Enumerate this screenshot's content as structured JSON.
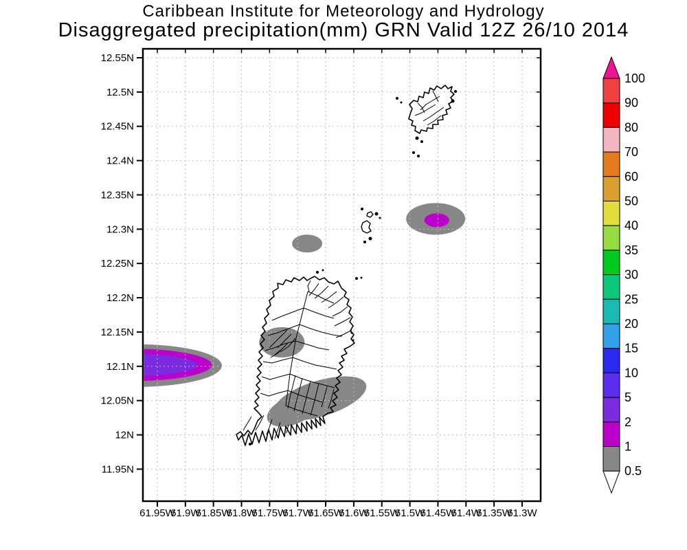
{
  "title": {
    "line1": "Caribbean Institute for Meteorology and Hydrology",
    "line2": "Disaggregated precipitation(mm) GRN Valid 12Z 26/10 2014"
  },
  "axes": {
    "y_ticks": [
      "12.55N",
      "12.5N",
      "12.45N",
      "12.4N",
      "12.35N",
      "12.3N",
      "12.25N",
      "12.2N",
      "12.15N",
      "12.1N",
      "12.05N",
      "12N",
      "11.95N"
    ],
    "x_ticks": [
      "61.95W",
      "61.9W",
      "61.85W",
      "61.8W",
      "61.75W",
      "61.7W",
      "61.65W",
      "61.6W",
      "61.55W",
      "61.5W",
      "61.45W",
      "61.4W",
      "61.35W",
      "61.3W"
    ]
  },
  "colorbar": {
    "tick_labels": [
      "100",
      "90",
      "80",
      "70",
      "60",
      "50",
      "40",
      "35",
      "30",
      "25",
      "20",
      "15",
      "10",
      "5",
      "2",
      "1",
      "0.5"
    ],
    "segment_colors_top_to_bottom": [
      "#ee4040",
      "#ee0000",
      "#f2b6c0",
      "#e87a1e",
      "#d9a02f",
      "#e2de3c",
      "#97dc3e",
      "#00cb1c",
      "#0bc87b",
      "#18bab2",
      "#32a2e8",
      "#2a2aee",
      "#5b2dee",
      "#7b2be0",
      "#bb00cc",
      "#878787"
    ],
    "top_arrow_color": "#ee1493",
    "bottom_arrow_color": "#ffffff"
  },
  "chart_data": {
    "type": "filled-contour-map",
    "title": "Caribbean Institute for Meteorology and Hydrology",
    "subtitle": "Disaggregated precipitation(mm) GRN Valid 12Z 26/10 2014",
    "variable": "Disaggregated precipitation",
    "units": "mm",
    "region": "GRN (Grenada, Carriacou and nearby islets)",
    "valid_time": "12Z 26/10 2014",
    "grid": "dotted",
    "legend_position": "right",
    "lon_ticks_deg_w": [
      61.95,
      61.9,
      61.85,
      61.8,
      61.75,
      61.7,
      61.65,
      61.6,
      61.55,
      61.5,
      61.45,
      61.4,
      61.35,
      61.3
    ],
    "lat_ticks_deg_n": [
      12.55,
      12.5,
      12.45,
      12.4,
      12.35,
      12.3,
      12.25,
      12.2,
      12.15,
      12.1,
      12.05,
      12.0,
      11.95
    ],
    "lon_extent_deg_w": [
      61.976,
      61.267
    ],
    "lat_extent_deg_n": [
      11.903,
      12.56
    ],
    "contour_levels_mm": [
      0.5,
      1,
      2,
      5,
      10,
      15,
      20,
      25,
      30,
      35,
      40,
      50,
      60,
      70,
      80,
      90,
      100
    ],
    "level_colors_low_to_high": [
      "#878787",
      "#bb00cc",
      "#7b2be0",
      "#5b2dee",
      "#2a2aee",
      "#32a2e8",
      "#18bab2",
      "#0bc87b",
      "#00cb1c",
      "#97dc3e",
      "#e2de3c",
      "#d9a02f",
      "#e87a1e",
      "#f2b6c0",
      "#ee0000",
      "#ee4040"
    ],
    "precip_areas": [
      {
        "id": "offshore-west",
        "note": "nested maxima clipped by west edge of plot near 12.1N",
        "rings": [
          {
            "range_mm": "0.5-1",
            "color": "#878787",
            "center": {
              "lon_w": 61.989,
              "lat_n": 12.101
            },
            "rx_deg": 0.154,
            "ry_deg": 0.0312,
            "rot_deg": 0
          },
          {
            "range_mm": "1-2",
            "color": "#bb00cc",
            "center": {
              "lon_w": 61.995,
              "lat_n": 12.102
            },
            "rx_deg": 0.142,
            "ry_deg": 0.0236,
            "rot_deg": 0
          },
          {
            "range_mm": "2-5",
            "color": "#7b2be0",
            "center": {
              "lon_w": 62.001,
              "lat_n": 12.102
            },
            "rx_deg": 0.122,
            "ry_deg": 0.0165,
            "rot_deg": 0
          }
        ]
      },
      {
        "id": "offshore-west-of-ronde",
        "rings": [
          {
            "range_mm": "0.5-1",
            "color": "#878787",
            "center": {
              "lon_w": 61.683,
              "lat_n": 12.279
            },
            "rx_deg": 0.0269,
            "ry_deg": 0.013,
            "rot_deg": 0
          }
        ]
      },
      {
        "id": "offshore-east",
        "rings": [
          {
            "range_mm": "0.5-1",
            "color": "#878787",
            "center": {
              "lon_w": 61.454,
              "lat_n": 12.315
            },
            "rx_deg": 0.0526,
            "ry_deg": 0.0231,
            "rot_deg": 0
          },
          {
            "range_mm": "1-2",
            "color": "#bb00cc",
            "center": {
              "lon_w": 61.452,
              "lat_n": 12.313
            },
            "rx_deg": 0.022,
            "ry_deg": 0.01,
            "rot_deg": 0
          }
        ]
      },
      {
        "id": "grenada-northwest",
        "rings": [
          {
            "range_mm": "0.5-1",
            "color": "#878787",
            "center": {
              "lon_w": 61.728,
              "lat_n": 12.135
            },
            "rx_deg": 0.0404,
            "ry_deg": 0.0221,
            "rot_deg": 0
          }
        ]
      },
      {
        "id": "grenada-southeast",
        "rings": [
          {
            "range_mm": "0.5-1",
            "color": "#878787",
            "center": {
              "lon_w": 61.66,
              "lat_n": 12.053
            },
            "rx_deg": 0.0857,
            "ry_deg": 0.0261,
            "rot_deg": -17
          },
          {
            "range_mm": "0.5-1",
            "color": "#878787",
            "center": {
              "lon_w": 61.71,
              "lat_n": 12.035
            },
            "rx_deg": 0.0465,
            "ry_deg": 0.0201,
            "rot_deg": -20
          }
        ]
      }
    ]
  }
}
